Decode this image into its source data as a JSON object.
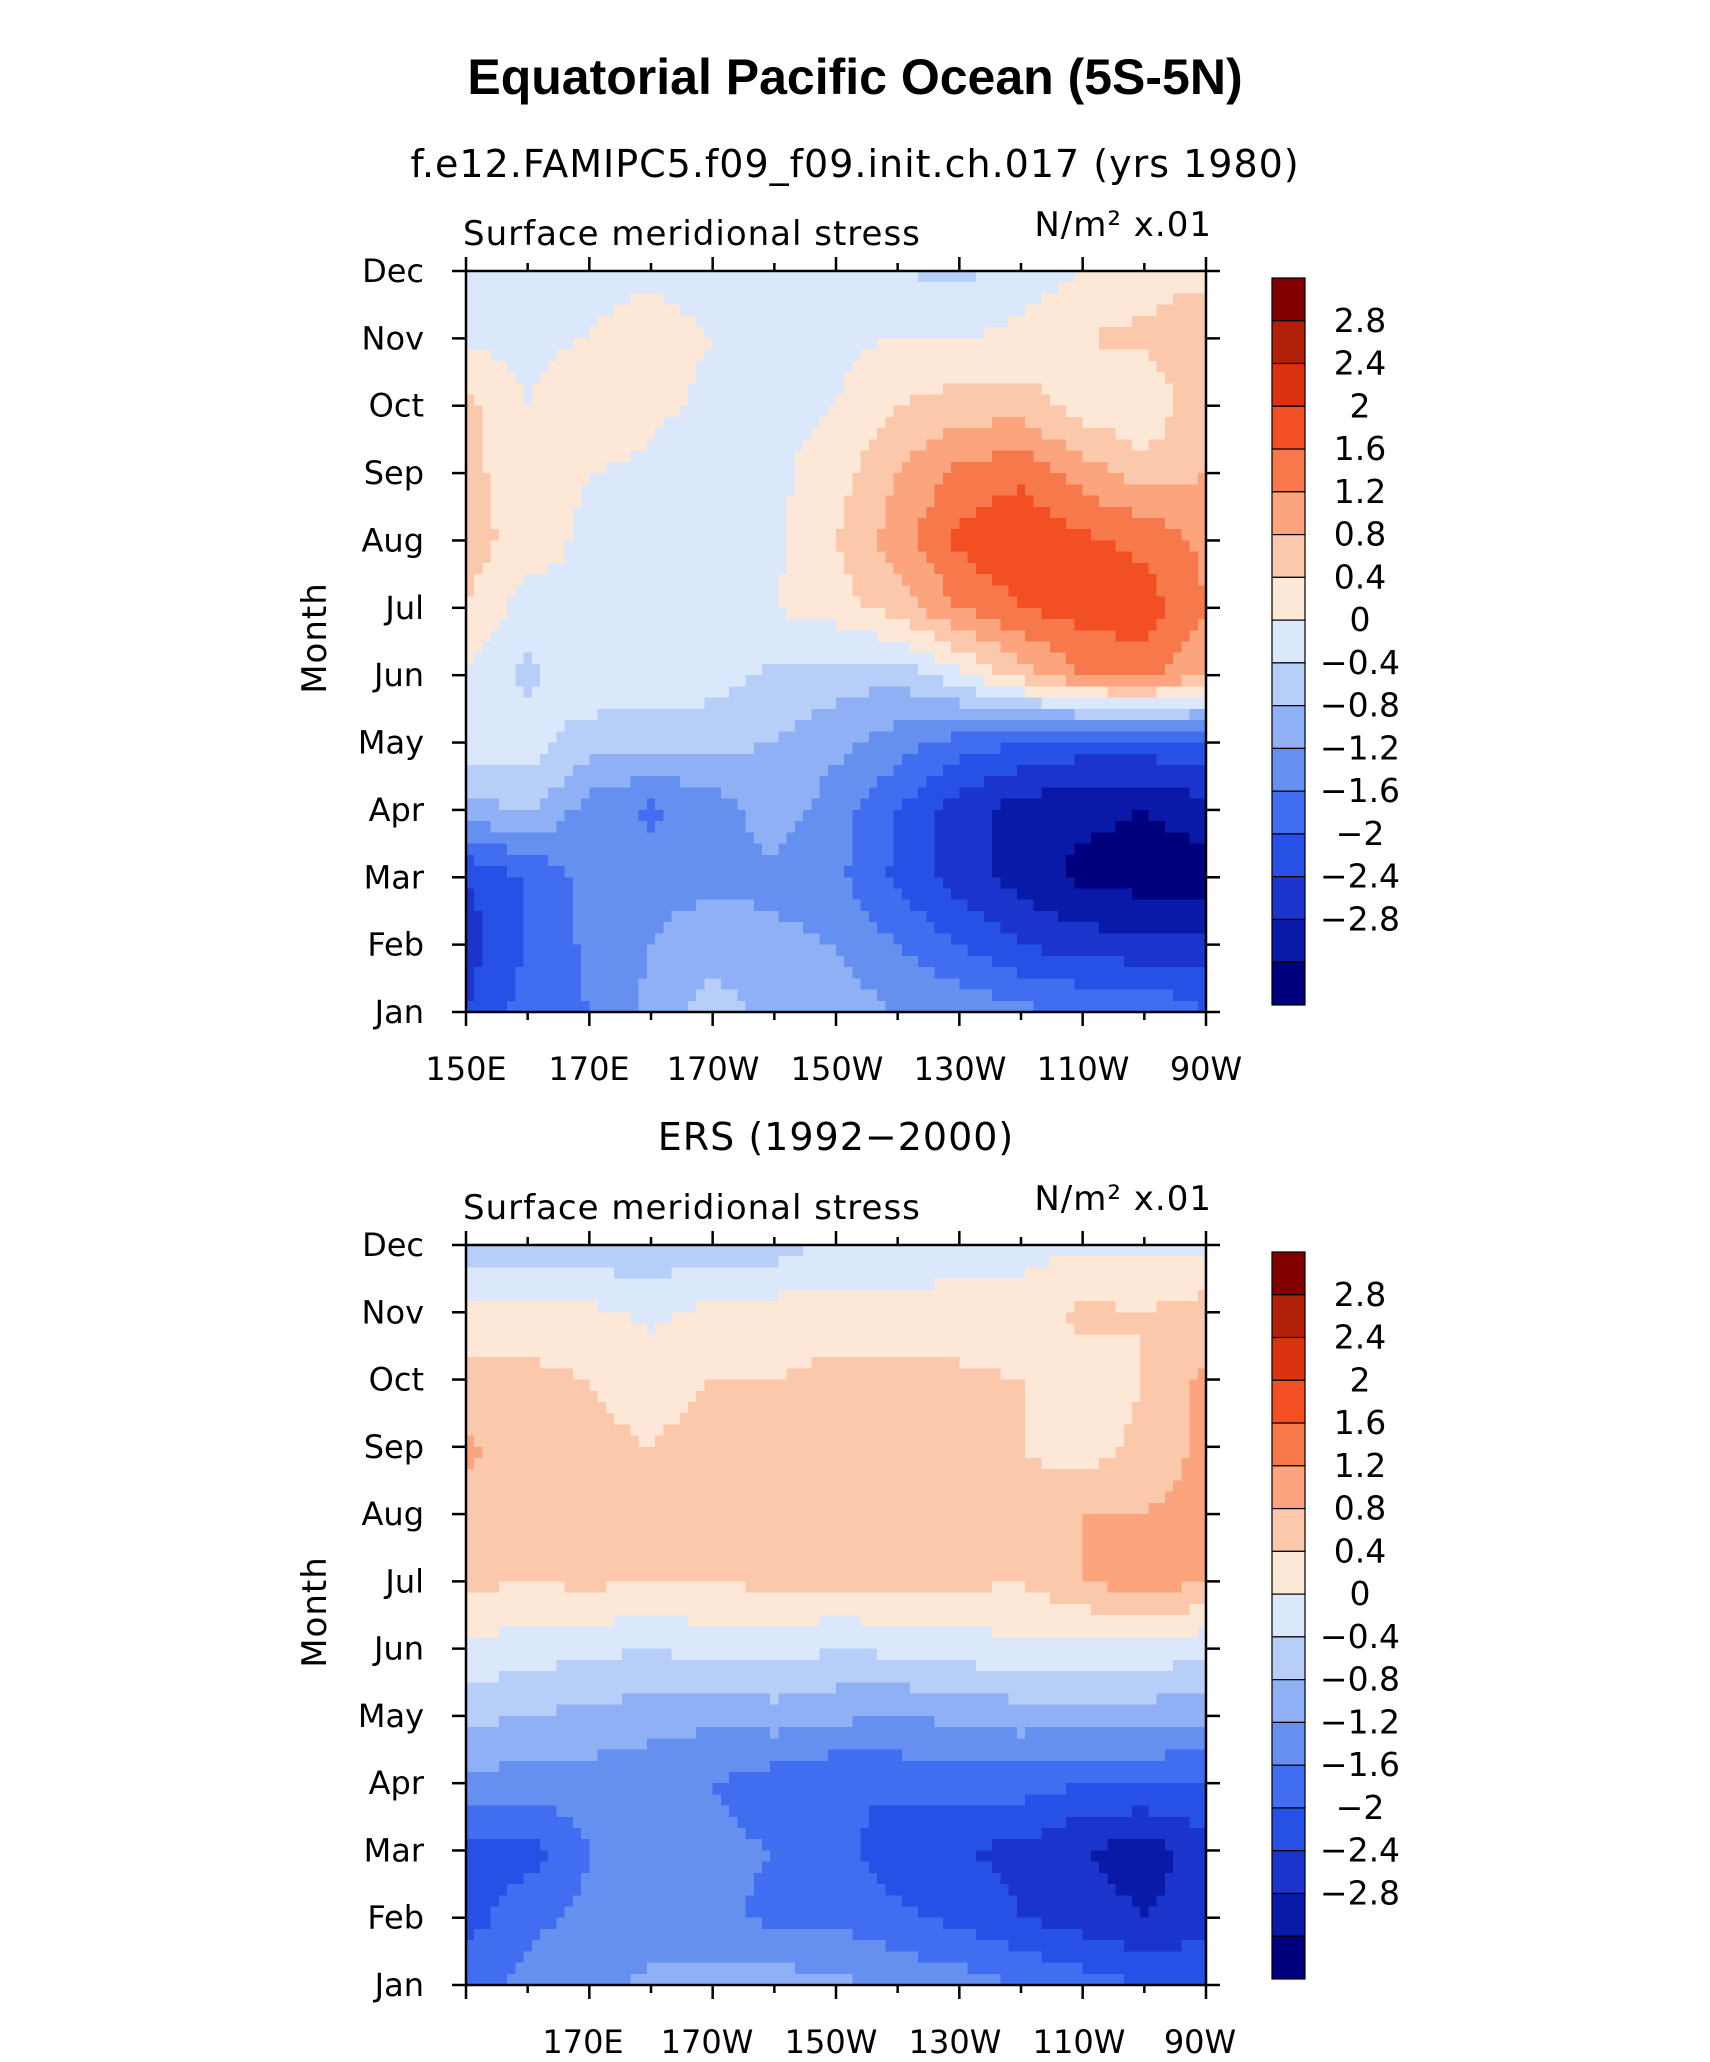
{
  "page": {
    "title": "Equatorial Pacific Ocean (5S-5N)"
  },
  "chart_data": [
    {
      "type": "heatmap",
      "subtitle": "f.e12.FAMIPC5.f09_f09.init.ch.017 (yrs 1980)",
      "left_label": "Surface meridional stress",
      "units": "N/m² x.01",
      "ylabel": "Month",
      "xlabel": "",
      "x_ticks": [
        "150E",
        "170E",
        "170W",
        "150W",
        "130W",
        "110W",
        "90W"
      ],
      "y_ticks": [
        "Jan",
        "Feb",
        "Mar",
        "Apr",
        "May",
        "Jun",
        "Jul",
        "Aug",
        "Sep",
        "Oct",
        "Nov",
        "Dec"
      ],
      "x_range_deg_east": [
        150,
        270
      ],
      "colorbar_labels": [
        "2.8",
        "2.4",
        "2",
        "1.6",
        "1.2",
        "0.8",
        "0.4",
        "0",
        "−0.4",
        "−0.8",
        "−1.2",
        "−1.6",
        "−2",
        "−2.4",
        "−2.8"
      ],
      "x": [
        150,
        160,
        170,
        180,
        190,
        200,
        210,
        220,
        230,
        240,
        250,
        260,
        270
      ],
      "months": [
        "Jan",
        "Feb",
        "Mar",
        "Apr",
        "May",
        "Jun",
        "Jul",
        "Aug",
        "Sep",
        "Oct",
        "Nov",
        "Dec"
      ],
      "values": [
        [
          -2.0,
          -1.4,
          -1.2,
          -0.7,
          -0.2,
          -0.5,
          -0.6,
          -0.8,
          -0.9,
          -1.1,
          -1.2,
          -1.2,
          -1.6
        ],
        [
          -2.2,
          -1.6,
          -1.1,
          -0.8,
          -0.6,
          -0.7,
          -0.8,
          -1.2,
          -1.6,
          -2.0,
          -2.2,
          -2.3,
          -2.3
        ],
        [
          -2.0,
          -1.6,
          -1.0,
          -0.9,
          -0.9,
          -0.9,
          -1.1,
          -1.7,
          -2.2,
          -2.6,
          -2.9,
          -3.0,
          -3.0
        ],
        [
          -0.6,
          -0.3,
          -1.0,
          -1.3,
          -1.0,
          -0.6,
          -1.0,
          -1.6,
          -2.2,
          -2.6,
          -2.7,
          -2.8,
          -2.6
        ],
        [
          0.3,
          0.2,
          -0.2,
          -0.3,
          -0.3,
          -0.4,
          -0.7,
          -1.0,
          -1.4,
          -1.6,
          -1.8,
          -1.8,
          -1.6
        ],
        [
          0.4,
          -0.1,
          0.3,
          0.3,
          0.2,
          -0.1,
          -0.2,
          -0.3,
          0.3,
          1.0,
          1.6,
          1.8,
          1.2
        ],
        [
          0.8,
          0.2,
          0.4,
          0.3,
          0.3,
          0.4,
          0.6,
          1.0,
          1.6,
          2.0,
          2.2,
          2.2,
          1.6
        ],
        [
          1.0,
          0.6,
          0.3,
          0.1,
          0.2,
          0.3,
          0.8,
          1.4,
          2.1,
          2.4,
          2.1,
          1.9,
          1.5
        ],
        [
          0.9,
          0.6,
          0.4,
          0.3,
          0.1,
          0.3,
          0.6,
          1.2,
          1.7,
          1.9,
          1.4,
          1.0,
          1.2
        ],
        [
          0.9,
          0.4,
          0.7,
          0.5,
          0.3,
          0.3,
          0.4,
          0.8,
          1.0,
          1.0,
          0.6,
          0.4,
          1.2
        ],
        [
          0.3,
          0.3,
          0.4,
          0.6,
          0.4,
          0.3,
          0.3,
          0.4,
          0.4,
          0.5,
          0.8,
          0.9,
          1.1
        ],
        [
          0.2,
          0.2,
          0.3,
          0.3,
          0.2,
          0.1,
          0.1,
          0.0,
          -0.1,
          0.2,
          0.4,
          0.6,
          0.7
        ]
      ]
    },
    {
      "type": "heatmap",
      "subtitle": "ERS (1992−2000)",
      "left_label": "Surface meridional stress",
      "units": "N/m² x.01",
      "ylabel": "Month",
      "xlabel": "",
      "x_ticks": [
        "170E",
        "170W",
        "150W",
        "130W",
        "110W",
        "90W"
      ],
      "y_ticks": [
        "Jan",
        "Feb",
        "Mar",
        "Apr",
        "May",
        "Jun",
        "Jul",
        "Aug",
        "Sep",
        "Oct",
        "Nov",
        "Dec"
      ],
      "x_range_deg_east": [
        150,
        270
      ],
      "colorbar_labels": [
        "2.8",
        "2.4",
        "2",
        "1.6",
        "1.2",
        "0.8",
        "0.4",
        "0",
        "−0.4",
        "−0.8",
        "−1.2",
        "−1.6",
        "−2",
        "−2.4",
        "−2.8"
      ],
      "x": [
        150,
        160,
        170,
        180,
        190,
        200,
        210,
        220,
        230,
        240,
        250,
        260,
        270
      ],
      "months": [
        "Jan",
        "Feb",
        "Mar",
        "Apr",
        "May",
        "Jun",
        "Jul",
        "Aug",
        "Sep",
        "Oct",
        "Nov",
        "Dec"
      ],
      "values": [
        [
          -1.3,
          -1.1,
          -0.9,
          -0.7,
          -0.6,
          -0.6,
          -0.7,
          -0.9,
          -1.0,
          -1.2,
          -1.4,
          -1.6,
          -1.6
        ],
        [
          -1.8,
          -1.3,
          -1.1,
          -1.1,
          -1.1,
          -1.3,
          -1.3,
          -1.5,
          -1.7,
          -2.0,
          -2.2,
          -2.4,
          -2.2
        ],
        [
          -1.8,
          -1.8,
          -1.2,
          -1.1,
          -1.1,
          -1.2,
          -1.4,
          -1.9,
          -2.0,
          -2.1,
          -2.4,
          -2.6,
          -2.2
        ],
        [
          -0.9,
          -1.0,
          -1.0,
          -1.1,
          -1.2,
          -1.4,
          -1.6,
          -1.5,
          -1.4,
          -1.4,
          -1.6,
          -1.6,
          -1.6
        ],
        [
          -0.3,
          -0.4,
          -0.5,
          -0.6,
          -0.7,
          -0.6,
          -0.7,
          -0.8,
          -0.7,
          -0.6,
          -0.6,
          -0.6,
          -0.7
        ],
        [
          0.3,
          0.2,
          0.1,
          0.0,
          0.2,
          0.2,
          0.0,
          0.1,
          0.2,
          0.3,
          0.2,
          0.3,
          0.1
        ],
        [
          0.9,
          0.8,
          0.9,
          0.8,
          0.8,
          0.9,
          0.9,
          0.9,
          0.9,
          0.8,
          1.2,
          1.4,
          1.2
        ],
        [
          1.0,
          0.9,
          0.8,
          0.9,
          0.9,
          1.0,
          0.9,
          0.9,
          0.9,
          0.9,
          1.2,
          1.2,
          1.4
        ],
        [
          1.3,
          0.9,
          0.9,
          0.8,
          1.0,
          0.9,
          1.0,
          0.9,
          0.9,
          0.8,
          0.6,
          0.9,
          1.3
        ],
        [
          0.9,
          0.9,
          0.8,
          0.6,
          0.8,
          0.8,
          0.9,
          0.9,
          0.9,
          0.8,
          0.6,
          0.8,
          1.3
        ],
        [
          0.5,
          0.6,
          0.5,
          0.3,
          0.5,
          0.6,
          0.6,
          0.5,
          0.5,
          0.5,
          0.9,
          0.8,
          1.0
        ],
        [
          -0.2,
          -0.3,
          -0.3,
          -0.3,
          -0.2,
          -0.2,
          0.1,
          0.2,
          0.3,
          0.3,
          0.3,
          0.3,
          0.3
        ]
      ]
    }
  ],
  "colors": {
    "levels": [
      -2.8,
      -2.4,
      -2.0,
      -1.6,
      -1.2,
      -0.8,
      -0.4,
      0,
      0.4,
      0.8,
      1.2,
      1.6,
      2.0,
      2.4,
      2.8
    ],
    "palette": [
      "#00007f",
      "#0a1aa8",
      "#1a34cc",
      "#2650e6",
      "#416ef0",
      "#6690f0",
      "#8fb0f5",
      "#b6cef8",
      "#dbe8fb",
      "#fde8d8",
      "#fcc8ac",
      "#fba47e",
      "#f7794b",
      "#f25022",
      "#dc3210",
      "#b3200a",
      "#800000"
    ]
  }
}
